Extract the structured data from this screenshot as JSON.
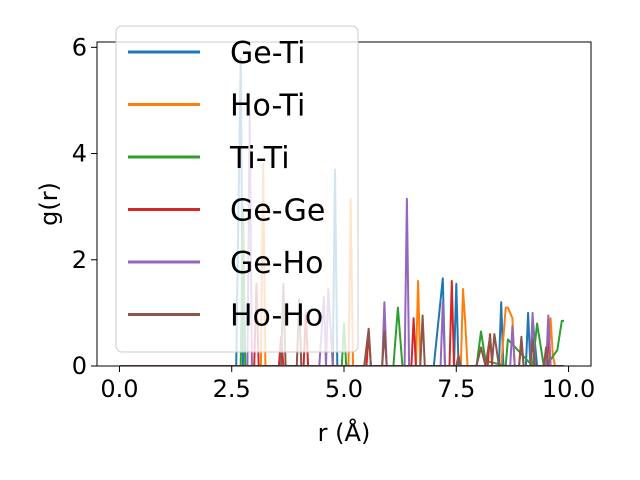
{
  "chart_data": {
    "type": "line",
    "xlabel": "r (Å)",
    "ylabel": "g(r)",
    "xlim": [
      -0.5,
      10.5
    ],
    "ylim": [
      0,
      6.1
    ],
    "xticks": [
      0.0,
      2.5,
      5.0,
      7.5,
      10.0
    ],
    "xtick_labels": [
      "0.0",
      "2.5",
      "5.0",
      "7.5",
      "10.0"
    ],
    "yticks": [
      0,
      2,
      4,
      6
    ],
    "ytick_labels": [
      "0",
      "2",
      "4",
      "6"
    ],
    "grid": false,
    "legend_position": "top-left",
    "series": [
      {
        "name": "Ge-Ti",
        "color": "#1f77b4",
        "x": [
          0,
          2.6,
          2.65,
          2.7,
          2.75,
          4.75,
          4.8,
          4.85,
          6.95,
          7.0,
          7.2,
          7.25,
          7.3,
          7.45,
          7.5,
          7.55,
          8.35,
          8.4,
          8.45,
          8.5,
          8.55,
          8.6,
          9.05,
          9.1,
          9.15,
          9.2,
          9.3,
          9.9
        ],
        "y": [
          0,
          0,
          3.0,
          5.8,
          0,
          0,
          3.7,
          0,
          0,
          0,
          1.65,
          0,
          0,
          0,
          1.55,
          0,
          0,
          0,
          0,
          1.2,
          0,
          0,
          0,
          1.0,
          0,
          0.9,
          0,
          0
        ]
      },
      {
        "name": "Ho-Ti",
        "color": "#ff7f0e",
        "x": [
          0,
          3.15,
          3.2,
          3.25,
          5.1,
          5.15,
          5.2,
          6.6,
          6.65,
          6.7,
          7.6,
          7.65,
          7.7,
          7.75,
          8.5,
          8.6,
          8.65,
          8.75,
          8.8,
          9.55,
          9.6,
          9.65,
          9.7
        ],
        "y": [
          0,
          0,
          3.8,
          0,
          0,
          3.15,
          0,
          0,
          1.6,
          0,
          0,
          1.45,
          0.8,
          0,
          0,
          1.1,
          1.1,
          0.9,
          0,
          0,
          0.9,
          0.2,
          0
        ]
      },
      {
        "name": "Ti-Ti",
        "color": "#2ca02c",
        "x": [
          0,
          2.7,
          2.75,
          2.8,
          4.95,
          5.0,
          5.05,
          6.1,
          6.2,
          6.3,
          7.95,
          8.05,
          8.15,
          8.6,
          8.65,
          9.2,
          9.3,
          9.45,
          9.5,
          9.75,
          9.85,
          9.9
        ],
        "y": [
          0,
          0,
          3.0,
          0,
          0,
          0.8,
          0,
          0,
          1.1,
          0,
          0,
          0.65,
          0.1,
          0,
          0.5,
          0,
          0.8,
          0,
          0,
          0.3,
          0.85,
          0.85
        ]
      },
      {
        "name": "Ge-Ge",
        "color": "#d62728",
        "x": [
          0,
          3.0,
          3.05,
          3.1,
          3.55,
          3.6,
          3.65,
          4.1,
          4.15,
          4.2,
          5.5,
          5.55,
          5.6,
          6.5,
          6.55,
          6.6,
          7.35,
          7.4,
          7.45,
          8.2,
          8.25,
          8.3,
          8.9,
          8.95,
          9.0,
          9.5,
          9.55,
          9.6
        ],
        "y": [
          0,
          0,
          1.55,
          0,
          0,
          0.55,
          0,
          0,
          1.0,
          0,
          0,
          0.65,
          0,
          0,
          0.9,
          0,
          0,
          1.6,
          0,
          0,
          0.6,
          0,
          0,
          0.5,
          0,
          0,
          0.55,
          0
        ]
      },
      {
        "name": "Ge-Ho",
        "color": "#9467bd",
        "x": [
          0,
          2.85,
          2.9,
          2.95,
          4.45,
          4.55,
          4.6,
          4.65,
          4.75,
          5.85,
          5.9,
          5.95,
          6.3,
          6.35,
          6.4,
          6.45,
          7.15,
          7.2,
          7.25,
          8.7,
          8.75,
          8.8,
          9.15,
          9.2,
          9.25,
          9.5,
          9.55,
          9.6
        ],
        "y": [
          0,
          0,
          4.8,
          0,
          0,
          1.3,
          0,
          1.45,
          0,
          0,
          1.2,
          0,
          0,
          0,
          3.15,
          0,
          0,
          1.2,
          0,
          0,
          0.75,
          0,
          0,
          1.0,
          0,
          0,
          0.95,
          0
        ]
      },
      {
        "name": "Ho-Ho",
        "color": "#8c564b",
        "x": [
          0,
          3.6,
          3.65,
          3.7,
          3.95,
          4.0,
          4.05,
          5.45,
          5.55,
          5.6,
          5.85,
          5.9,
          5.95,
          6.7,
          6.75,
          6.8,
          7.5,
          7.55,
          7.6,
          7.95,
          8.05,
          8.15,
          8.25,
          8.3,
          8.35,
          8.45,
          8.9,
          8.95,
          9.0,
          9.15,
          9.2,
          9.25,
          9.45,
          9.5,
          9.55,
          9.6,
          9.85,
          9.9
        ],
        "y": [
          0,
          0,
          1.55,
          0,
          0,
          1.25,
          0,
          0,
          0.7,
          0,
          0,
          0.65,
          0,
          0,
          0.95,
          0,
          0,
          0.2,
          0,
          0,
          0.35,
          0,
          0.55,
          0.1,
          0.6,
          0,
          0,
          0.55,
          0,
          0,
          0.5,
          0,
          0,
          0.35,
          0,
          0,
          0,
          0
        ]
      }
    ]
  }
}
